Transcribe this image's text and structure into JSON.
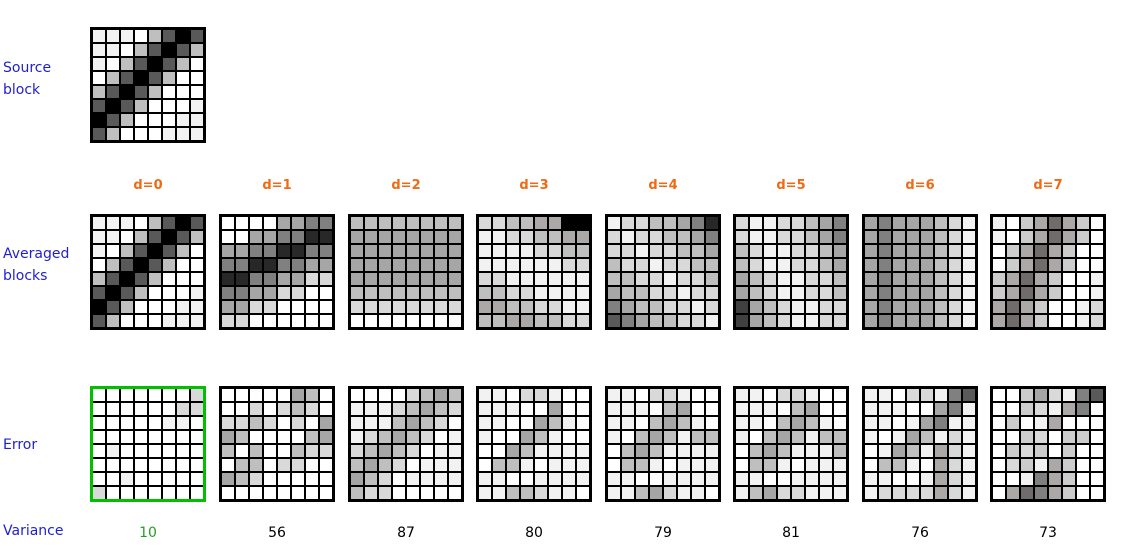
{
  "labels": {
    "source": "Source\nblock",
    "averaged": "Averaged\nblocks",
    "error": "Error",
    "variance": "Variance"
  },
  "colors": {
    "label": "#1f1fd0",
    "d_label": "#f06a14",
    "best": "#22a022",
    "best_border": "#00c000"
  },
  "palette": {
    "W": "#ffffff",
    "L": "#f2f2f2",
    "M": "#d9d9d9",
    "C": "#cccccc",
    "G": "#bfbfbf",
    "T": "#aca8a8",
    "A": "#a6a6a6",
    "N": "#808080",
    "Y": "#706c6c",
    "D": "#595959",
    "E": "#404040",
    "X": "#282828",
    "K": "#000000"
  },
  "source_block": [
    "LLLWGDKD",
    "LLWGDKDG",
    "LWGDKDGW",
    "WGDKDGWW",
    "GDKDGWWW",
    "DKDGWWWL",
    "KDGWWWLL",
    "DGWWWLLL"
  ],
  "columns": [
    {
      "d": "d=0",
      "variance": "10",
      "best": true,
      "averaged": [
        "LLLWGDKD",
        "LLWGDKDG",
        "LWGDKDGW",
        "WGDKDGWW",
        "GDKDGWWW",
        "DKDGWWWL",
        "KDGWWWLL",
        "DGWWWLLL"
      ],
      "error": [
        "WWWWWWWM",
        "WWWWWWMM",
        "WWWWWLLW",
        "WWWWWWWW",
        "WLWWWWWW",
        "WWWWWWWW",
        "WWLWWWWW",
        "MWWWWWWW"
      ]
    },
    {
      "d": "d=1",
      "variance": "56",
      "averaged": [
        "WWWWAANN",
        "WWAANNXX",
        "AANNXXNN",
        "NNXXNNAA",
        "XXNNAAMM",
        "NNAAMMWW",
        "AAMMWWWW",
        "MMWWWWWW"
      ],
      "error": [
        "WWWWWAGW",
        "WWMWMGMW",
        "MMGMWMWA",
        "AGWWWWGA",
        "GWGWWGMM",
        "WGGWMMWW",
        "AGMWWWWW",
        "WWWWWWWW"
      ]
    },
    {
      "d": "d=2",
      "variance": "87",
      "averaged": [
        "GGGGGGGG",
        "AAAAAAAA",
        "AAAAAAAA",
        "AAAAAAAA",
        "AAAAAAAA",
        "GGGGGGGG",
        "MMMMMMMM",
        "WWWWWWWW"
      ],
      "error": [
        "WWWWMGAG",
        "LLLMGAGM",
        "LLLGAGMW",
        "LMGAGMWL",
        "MGAGMWLL",
        "GAGMWLLL",
        "AGMWLLLL",
        "GMMWWWWW"
      ]
    },
    {
      "d": "d=3",
      "variance": "80",
      "averaged": [
        "MMGGTTKK",
        "LLMMGGTT",
        "LLLLMMGG",
        "LLLLLLMM",
        "MMLLLLLL",
        "GGMMLLLL",
        "TTGGMMLL",
        "GGTTGGMM"
      ],
      "error": [
        "LLWMMLWW",
        "LLLWWAWW",
        "LLWWAGLW",
        "LWWAGLWW",
        "WWAGLLLL",
        "WGGLWLLL",
        "LLWWLLLL",
        "LLGGMLLW"
      ]
    },
    {
      "d": "d=4",
      "variance": "79",
      "averaged": [
        "LMMGGANX",
        "MLMMGGAN",
        "MMLMMGGA",
        "GMMLMMGG",
        "GGMMLMMG",
        "AGGMMLMM",
        "NAGGMMLM",
        "DNAGGMML"
      ],
      "error": [
        "LLWMMLWW",
        "LLLWGAWW",
        "LLWGAGLW",
        "LWGAGLGG",
        "WGAGLLLL",
        "WGGLWLLL",
        "LLWWLLLL",
        "LLGAMLLW"
      ]
    },
    {
      "d": "d=5",
      "variance": "81",
      "averaged": [
        "MLLMMGAN",
        "MLLMMGAN",
        "GMLLMMGA",
        "GMLLMMGA",
        "AGMLLMMG",
        "AGMLLMMG",
        "EAGMLLMM",
        "EAGMLLMM"
      ],
      "error": [
        "LLWMMLWW",
        "LLLWGAWW",
        "LLWGAGLW",
        "LWGAGLGG",
        "WGAGLLLG",
        "WGGLWLLL",
        "LLWWLLLL",
        "LGAMMLLL"
      ]
    },
    {
      "d": "d=6",
      "variance": "76",
      "averaged": [
        "ANAAAGML",
        "ANAAAGML",
        "ANAAAGML",
        "ANAAAGML",
        "ANAAAGML",
        "ANAAAGML",
        "ANAAAGML",
        "ANAAAGML"
      ],
      "error": [
        "LLWMMLND",
        "LLLWWANL",
        "LLWLANLL",
        "LWLAGLML",
        "WLAGLTML",
        "WGGLWTML",
        "LLWWLTML",
        "LMMMMTML"
      ]
    },
    {
      "d": "d=7",
      "variance": "73",
      "averaged": [
        "LWCTYTCW",
        "LWCTYTCW",
        "WCTYTCWW",
        "WCTYTCWW",
        "CTYTCWWL",
        "CTYTCWWL",
        "TYTCWWLM",
        "TYTCWWLM"
      ],
      "error": [
        "WWCAMLND",
        "WWCMLTNW",
        "WCWLTWWW",
        "WWCMWCCW",
        "WCMCWCWW",
        "WMCLTCWW",
        "WWLNTCWW",
        "WTYNTCWW"
      ]
    }
  ]
}
